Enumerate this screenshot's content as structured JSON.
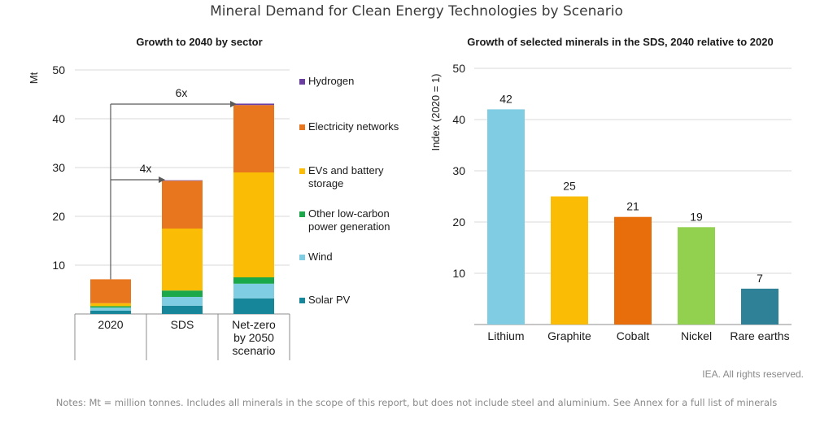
{
  "title": "Mineral Demand for Clean Energy Technologies by Scenario",
  "credit": "IEA. All rights reserved.",
  "notes": "Notes: Mt = million tonnes. Includes all minerals in the scope of this report, but does not include steel and aluminium. See Annex for a full list of minerals",
  "colors": {
    "hydrogen": "#6b3fa0",
    "electricity": "#e8761e",
    "evs": "#fbbc05",
    "lowcarbon": "#1aa84a",
    "wind": "#7fcde3",
    "solar": "#16879a",
    "lithium": "#80cde3",
    "graphite": "#fbbc05",
    "cobalt": "#e86e0b",
    "nickel": "#92d050",
    "rare_earths": "#2e8197"
  },
  "chart_data": [
    {
      "type": "bar",
      "stacked": true,
      "title": "Growth to 2040 by sector",
      "ylabel": "Mt",
      "ylim": [
        0,
        50
      ],
      "yticks": [
        10,
        20,
        30,
        40,
        50
      ],
      "categories": [
        "2020",
        "SDS",
        "Net-zero\nby 2050\nscenario"
      ],
      "series": [
        {
          "name": "Solar PV",
          "color_key": "solar",
          "values": [
            0.7,
            1.7,
            3.2
          ]
        },
        {
          "name": "Wind",
          "color_key": "wind",
          "values": [
            0.6,
            1.8,
            3.0
          ]
        },
        {
          "name": "Other low-carbon power generation",
          "color_key": "lowcarbon",
          "values": [
            0.3,
            1.3,
            1.3
          ]
        },
        {
          "name": "EVs and battery storage",
          "color_key": "evs",
          "values": [
            0.6,
            12.7,
            21.5
          ]
        },
        {
          "name": "Electricity networks",
          "color_key": "electricity",
          "values": [
            4.9,
            9.8,
            13.8
          ]
        },
        {
          "name": "Hydrogen",
          "color_key": "hydrogen",
          "values": [
            0.0,
            0.1,
            0.3
          ]
        }
      ],
      "legend": {
        "placement": "right",
        "items": [
          "Hydrogen",
          "Electricity networks",
          "EVs and battery\nstorage",
          "Other low-carbon\npower generation",
          "Wind",
          "Solar PV"
        ]
      },
      "annotations": [
        {
          "text": "4x",
          "from_category": "2020",
          "to_category": "SDS",
          "level": 27.5
        },
        {
          "text": "6x",
          "from_category": "2020",
          "to_category": "Net-zero\nby 2050\nscenario",
          "level": 43
        }
      ]
    },
    {
      "type": "bar",
      "title": "Growth of selected minerals in the SDS, 2040 relative to 2020",
      "ylabel": "Index (2020 = 1)",
      "ylim": [
        0,
        50
      ],
      "yticks": [
        10,
        20,
        30,
        40,
        50
      ],
      "categories": [
        "Lithium",
        "Graphite",
        "Cobalt",
        "Nickel",
        "Rare earths"
      ],
      "values": [
        42,
        25,
        21,
        19,
        7
      ],
      "data_labels": [
        "42",
        "25",
        "21",
        "19",
        "7"
      ],
      "color_keys": [
        "lithium",
        "graphite",
        "cobalt",
        "nickel",
        "rare_earths"
      ]
    }
  ]
}
